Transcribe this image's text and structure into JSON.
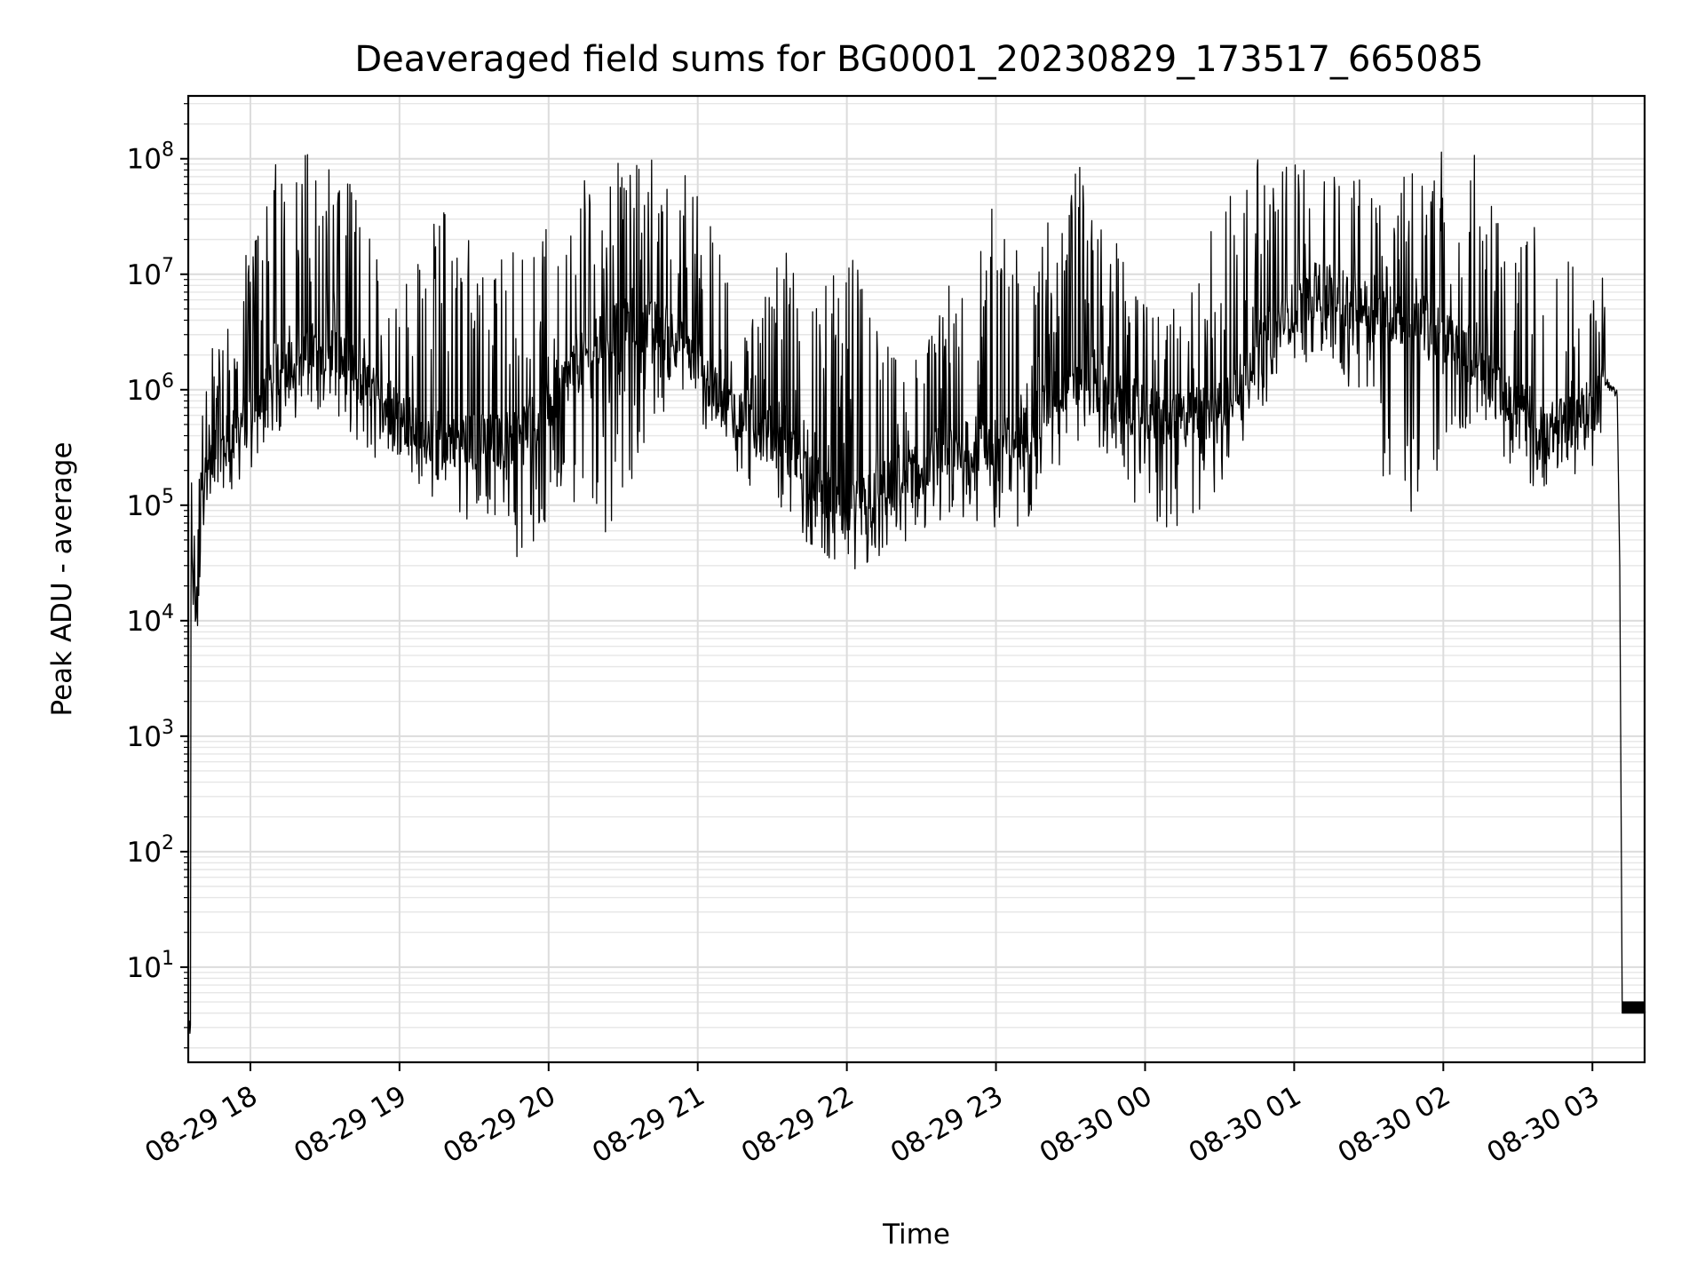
{
  "chart_data": {
    "type": "line",
    "title": "Deaveraged field sums for BG0001_20230829_173517_665085",
    "xlabel": "Time",
    "ylabel": "Peak ADU - average",
    "yscale": "log",
    "ylim": [
      1.5,
      350000000
    ],
    "xlim": [
      "2023-08-29 17:35",
      "2023-08-30 03:21"
    ],
    "grid": "major and minor",
    "line_color": "#000000",
    "x_ticks": [
      {
        "x": "2023-08-29 18:00",
        "label": "08-29 18"
      },
      {
        "x": "2023-08-29 19:00",
        "label": "08-29 19"
      },
      {
        "x": "2023-08-29 20:00",
        "label": "08-29 20"
      },
      {
        "x": "2023-08-29 21:00",
        "label": "08-29 21"
      },
      {
        "x": "2023-08-29 22:00",
        "label": "08-29 22"
      },
      {
        "x": "2023-08-29 23:00",
        "label": "08-29 23"
      },
      {
        "x": "2023-08-30 00:00",
        "label": "08-30 00"
      },
      {
        "x": "2023-08-30 01:00",
        "label": "08-30 01"
      },
      {
        "x": "2023-08-30 02:00",
        "label": "08-30 02"
      },
      {
        "x": "2023-08-30 03:00",
        "label": "08-30 03"
      }
    ],
    "y_ticks": [
      {
        "value": 10,
        "base": "10",
        "exp": "1"
      },
      {
        "value": 100,
        "base": "10",
        "exp": "2"
      },
      {
        "value": 1000,
        "base": "10",
        "exp": "3"
      },
      {
        "value": 10000,
        "base": "10",
        "exp": "4"
      },
      {
        "value": 100000,
        "base": "10",
        "exp": "5"
      },
      {
        "value": 1000000,
        "base": "10",
        "exp": "6"
      },
      {
        "value": 10000000,
        "base": "10",
        "exp": "7"
      },
      {
        "value": 100000000,
        "base": "10",
        "exp": "8"
      }
    ],
    "series": [
      {
        "baseline": [
          [
            "2023-08-29 17:35",
            2
          ],
          [
            "2023-08-29 17:36",
            25000
          ],
          [
            "2023-08-29 17:39",
            9000
          ],
          [
            "2023-08-29 17:40",
            150000
          ],
          [
            "2023-08-29 17:45",
            250000
          ],
          [
            "2023-08-29 17:55",
            450000
          ],
          [
            "2023-08-29 18:10",
            1500000
          ],
          [
            "2023-08-29 18:30",
            2500000
          ],
          [
            "2023-08-29 18:50",
            900000
          ],
          [
            "2023-08-29 19:10",
            400000
          ],
          [
            "2023-08-29 19:40",
            350000
          ],
          [
            "2023-08-29 19:55",
            500000
          ],
          [
            "2023-08-29 20:10",
            1500000
          ],
          [
            "2023-08-29 20:30",
            4000000
          ],
          [
            "2023-08-29 20:50",
            3000000
          ],
          [
            "2023-08-29 21:10",
            800000
          ],
          [
            "2023-08-29 21:40",
            250000
          ],
          [
            "2023-08-29 22:00",
            80000
          ],
          [
            "2023-08-29 22:20",
            150000
          ],
          [
            "2023-08-29 22:40",
            300000
          ],
          [
            "2023-08-29 23:10",
            350000
          ],
          [
            "2023-08-29 23:30",
            1500000
          ],
          [
            "2023-08-29 23:50",
            800000
          ],
          [
            "2023-08-30 00:10",
            500000
          ],
          [
            "2023-08-30 00:30",
            700000
          ],
          [
            "2023-08-30 00:50",
            3000000
          ],
          [
            "2023-08-30 01:10",
            8000000
          ],
          [
            "2023-08-30 01:30",
            5000000
          ],
          [
            "2023-08-30 01:50",
            4000000
          ],
          [
            "2023-08-30 02:10",
            2000000
          ],
          [
            "2023-08-30 02:40",
            400000
          ],
          [
            "2023-08-30 03:00",
            700000
          ],
          [
            "2023-08-30 03:05",
            1200000
          ],
          [
            "2023-08-30 03:10",
            900000
          ],
          [
            "2023-08-30 03:12",
            4
          ],
          [
            "2023-08-30 03:21",
            4
          ]
        ],
        "peaks": [
          [
            "2023-08-29 18:15",
            110000000
          ],
          [
            "2023-08-29 18:24",
            120000000
          ],
          [
            "2023-08-29 18:33",
            100000000
          ],
          [
            "2023-08-29 19:20",
            40000000
          ],
          [
            "2023-08-29 19:52",
            35000000
          ],
          [
            "2023-08-29 20:23",
            100000000
          ],
          [
            "2023-08-29 20:35",
            130000000
          ],
          [
            "2023-08-29 20:50",
            100000000
          ],
          [
            "2023-08-29 21:38",
            20000000
          ],
          [
            "2023-08-29 22:00",
            15000000
          ],
          [
            "2023-08-29 22:58",
            60000000
          ],
          [
            "2023-08-29 23:33",
            85000000
          ],
          [
            "2023-08-30 00:40",
            120000000
          ],
          [
            "2023-08-30 01:00",
            95000000
          ],
          [
            "2023-08-30 01:20",
            70000000
          ],
          [
            "2023-08-30 01:55",
            140000000
          ],
          [
            "2023-08-30 02:08",
            150000000
          ],
          [
            "2023-08-30 02:40",
            30000000
          ]
        ],
        "troughs": [
          [
            "2023-08-29 19:45",
            30000
          ],
          [
            "2023-08-29 20:22",
            45000
          ],
          [
            "2023-08-29 21:58",
            40000
          ],
          [
            "2023-08-29 22:30",
            70000
          ],
          [
            "2023-08-29 23:05",
            60000
          ],
          [
            "2023-08-30 00:10",
            55000
          ],
          [
            "2023-08-30 01:45",
            70000
          ]
        ]
      }
    ]
  }
}
